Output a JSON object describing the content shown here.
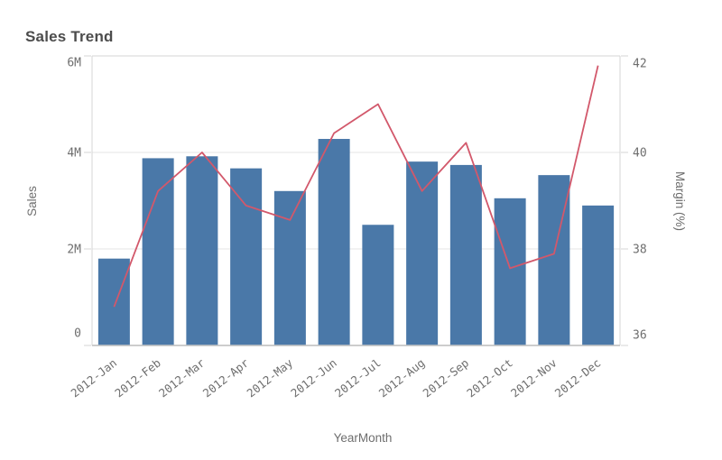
{
  "chart_data": {
    "type": "combo",
    "title": "Sales Trend",
    "xlabel": "YearMonth",
    "categories": [
      "2012-Jan",
      "2012-Feb",
      "2012-Mar",
      "2012-Apr",
      "2012-May",
      "2012-Jun",
      "2012-Jul",
      "2012-Aug",
      "2012-Sep",
      "2012-Oct",
      "2012-Nov",
      "2012-Dec"
    ],
    "series": [
      {
        "name": "Sales",
        "type": "bar",
        "axis": "left",
        "color": "#4a78a8",
        "values": [
          1800000,
          3880000,
          3920000,
          3670000,
          3200000,
          4280000,
          2500000,
          3810000,
          3740000,
          3050000,
          3530000,
          2900000
        ]
      },
      {
        "name": "Margin (%)",
        "type": "line",
        "axis": "right",
        "color": "#d2586b",
        "values": [
          36.8,
          39.2,
          40.0,
          38.9,
          38.6,
          40.4,
          41.0,
          39.2,
          40.2,
          37.6,
          37.9,
          41.8
        ]
      }
    ],
    "axes": {
      "left": {
        "label": "Sales",
        "min": 0,
        "max": 6000000,
        "ticks": [
          {
            "value": 0,
            "label": "0"
          },
          {
            "value": 2000000,
            "label": "2M"
          },
          {
            "value": 4000000,
            "label": "4M"
          },
          {
            "value": 6000000,
            "label": "6M"
          }
        ]
      },
      "right": {
        "label": "Margin (%)",
        "min": 36,
        "max": 42,
        "ticks": [
          {
            "value": 36,
            "label": "36"
          },
          {
            "value": 38,
            "label": "38"
          },
          {
            "value": 40,
            "label": "40"
          },
          {
            "value": 42,
            "label": "42"
          }
        ]
      },
      "x": {
        "label": "YearMonth"
      }
    },
    "grid": true,
    "legend": "none",
    "colors": {
      "title_text": "#4c4c4c",
      "axis_text": "#6e6e6e",
      "gridline": "#e6e6e6",
      "axis_line": "#d6d6d6",
      "bottom_axis_line": "#c6c6c6",
      "background": "#ffffff"
    }
  }
}
